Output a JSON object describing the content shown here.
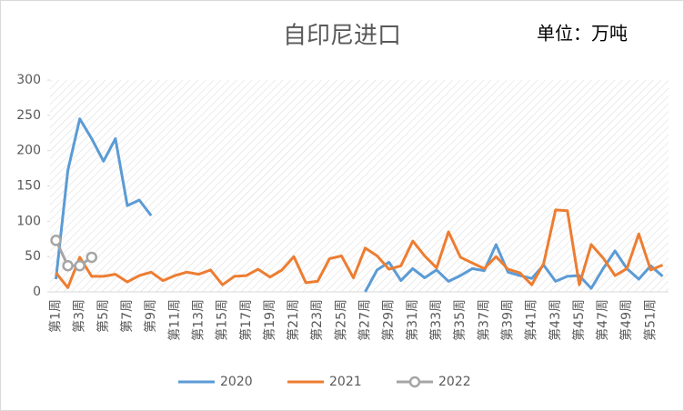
{
  "chart_data": {
    "type": "line",
    "title": "自印尼进口",
    "annotation": "单位：万吨",
    "categories": [
      "第1周",
      null,
      "第3周",
      null,
      "第5周",
      null,
      "第7周",
      null,
      "第9周",
      null,
      "第11周",
      null,
      "第13周",
      null,
      "第15周",
      null,
      "第17周",
      null,
      "第19周",
      null,
      "第21周",
      null,
      "第23周",
      null,
      "第25周",
      null,
      "第27周",
      null,
      "第29周",
      null,
      "第31周",
      null,
      "第33周",
      null,
      "第35周",
      null,
      "第37周",
      null,
      "第39周",
      null,
      "第41周",
      null,
      "第43周",
      null,
      "第45周",
      null,
      "第47周",
      null,
      "第49周",
      null,
      "第51周",
      null
    ],
    "series": [
      {
        "name": "2020",
        "color": "#5b9bd5",
        "markers": false,
        "values": [
          18,
          172,
          245,
          217,
          185,
          217,
          122,
          130,
          108,
          null,
          null,
          null,
          null,
          null,
          null,
          null,
          null,
          null,
          null,
          null,
          null,
          null,
          null,
          null,
          null,
          null,
          0,
          31,
          42,
          16,
          33,
          20,
          31,
          15,
          23,
          33,
          30,
          67,
          28,
          23,
          19,
          38,
          15,
          22,
          23,
          5,
          33,
          58,
          33,
          18,
          37,
          22
        ]
      },
      {
        "name": "2021",
        "color": "#ed7d31",
        "markers": false,
        "values": [
          27,
          6,
          49,
          22,
          22,
          25,
          14,
          23,
          28,
          16,
          23,
          28,
          25,
          31,
          10,
          22,
          23,
          32,
          21,
          31,
          50,
          13,
          15,
          47,
          51,
          20,
          62,
          51,
          32,
          37,
          72,
          51,
          34,
          85,
          49,
          41,
          33,
          50,
          32,
          27,
          10,
          40,
          116,
          115,
          10,
          67,
          48,
          23,
          33,
          82,
          31,
          38
        ]
      },
      {
        "name": "2022",
        "color": "#a5a5a5",
        "markers": true,
        "values": [
          73,
          37,
          37,
          49,
          null,
          null,
          null,
          null,
          null,
          null,
          null,
          null,
          null,
          null,
          null,
          null,
          null,
          null,
          null,
          null,
          null,
          null,
          null,
          null,
          null,
          null,
          null,
          null,
          null,
          null,
          null,
          null,
          null,
          null,
          null,
          null,
          null,
          null,
          null,
          null,
          null,
          null,
          null,
          null,
          null,
          null,
          null,
          null,
          null,
          null,
          null,
          null
        ]
      }
    ],
    "ylim": [
      0,
      300
    ],
    "yticks": [
      0,
      50,
      100,
      150,
      200,
      250,
      300
    ],
    "legend": "bottom"
  }
}
